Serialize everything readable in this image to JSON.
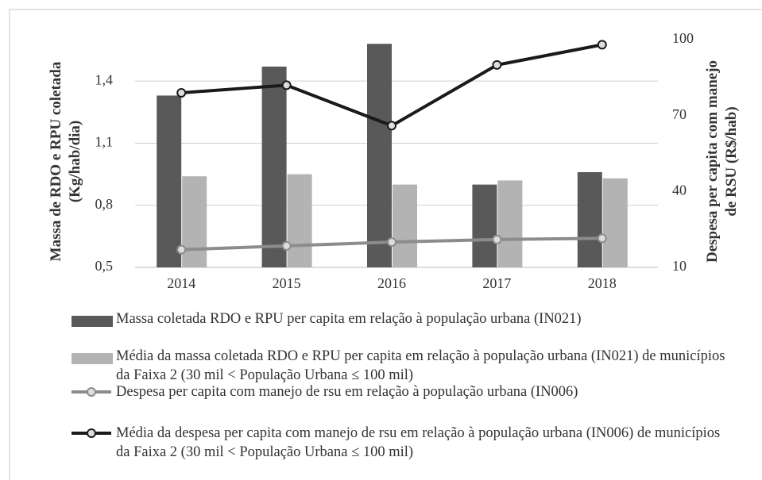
{
  "chart_data": {
    "type": "bar_line",
    "categories": [
      "2014",
      "2015",
      "2016",
      "2017",
      "2018"
    ],
    "y_label": [
      "Massa de RDO e RPU coletada",
      "(Kg/hab/dia)"
    ],
    "y2_label": [
      "Despesa per capita com manejo",
      "de RSU (R$/hab)"
    ],
    "ylim": [
      0.5,
      1.6
    ],
    "yticks": [
      {
        "value": 0.5,
        "label": "0,5"
      },
      {
        "value": 0.8,
        "label": "0,8"
      },
      {
        "value": 1.1,
        "label": "1,1"
      },
      {
        "value": 1.4,
        "label": "1,4"
      }
    ],
    "y2lim": [
      10,
      100
    ],
    "y2ticks": [
      10,
      40,
      70,
      100
    ],
    "grid": true,
    "legend": "bottom",
    "series": [
      {
        "name": "Massa coletada RDO e RPU per capita em relação à população urbana (IN021)",
        "type": "bar",
        "color": "#595959",
        "values": [
          1.33,
          1.47,
          1.58,
          0.9,
          0.96
        ]
      },
      {
        "name": "Média da massa coletada RDO e RPU per capita em relação à população urbana (IN021) de municípios da Faixa 2 (30 mil < População Urbana ≤ 100 mil)",
        "type": "bar",
        "color": "#b3b3b3",
        "values": [
          0.94,
          0.95,
          0.9,
          0.92,
          0.93
        ]
      },
      {
        "name": "Despesa per capita com manejo de rsu em relação à população urbana (IN006)",
        "type": "line",
        "axis": "y2",
        "color": "#8c8c8c",
        "values": [
          17,
          18.5,
          20,
          21,
          21.5
        ]
      },
      {
        "name": "Média da despesa per capita com manejo de rsu em relação à população urbana (IN006) de municípios da Faixa 2 (30 mil < População Urbana ≤ 100 mil)",
        "type": "line",
        "axis": "y2",
        "color": "#1a1a1a",
        "values": [
          79,
          82,
          66,
          90,
          98
        ]
      }
    ]
  }
}
